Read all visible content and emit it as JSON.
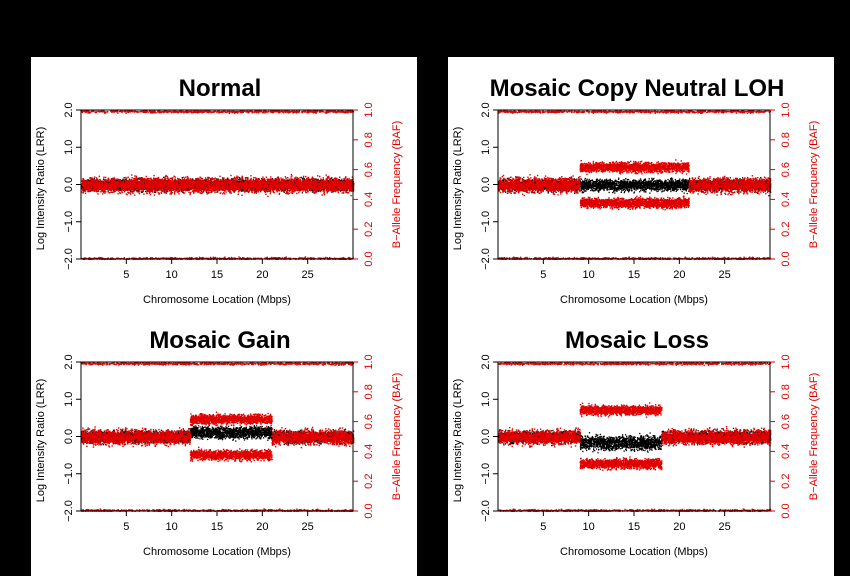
{
  "chart_data": [
    {
      "type": "scatter",
      "title": "Normal",
      "xlabel": "Chromosome Location (Mbps)",
      "ylabel": "Log Intensity Ratio (LRR)",
      "y2label": "B−Allele Frequency (BAF)",
      "xlim": [
        0,
        30
      ],
      "ylim": [
        -2.0,
        2.0
      ],
      "y2lim": [
        0.0,
        1.0
      ],
      "xticks": [
        "5",
        "10",
        "15",
        "20",
        "25"
      ],
      "yticks": [
        "−2.0",
        "−1.0",
        "0.0",
        "1.0",
        "2.0"
      ],
      "y2ticks": [
        "0.0",
        "0.2",
        "0.4",
        "0.6",
        "0.8",
        "1.0"
      ],
      "series": [
        {
          "name": "LRR",
          "color": "#000000",
          "segments": [
            {
              "x": [
                0,
                30
              ],
              "mean": 0.0,
              "spread": 0.28
            }
          ]
        },
        {
          "name": "BAF",
          "color": "#e00000",
          "segments": [
            {
              "x": [
                0,
                30
              ],
              "bands": [
                0.0,
                0.5,
                1.0
              ],
              "split": 0
            }
          ]
        }
      ]
    },
    {
      "type": "scatter",
      "title": "Mosaic Copy Neutral LOH",
      "xlabel": "Chromosome Location (Mbps)",
      "ylabel": "Log Intensity Ratio (LRR)",
      "y2label": "B−Allele Frequency (BAF)",
      "xlim": [
        0,
        30
      ],
      "ylim": [
        -2.0,
        2.0
      ],
      "y2lim": [
        0.0,
        1.0
      ],
      "xticks": [
        "5",
        "10",
        "15",
        "20",
        "25"
      ],
      "yticks": [
        "−2.0",
        "−1.0",
        "0.0",
        "1.0",
        "2.0"
      ],
      "y2ticks": [
        "0.0",
        "0.2",
        "0.4",
        "0.6",
        "0.8",
        "1.0"
      ],
      "series": [
        {
          "name": "LRR",
          "color": "#000000",
          "segments": [
            {
              "x": [
                0,
                30
              ],
              "mean": 0.0,
              "spread": 0.28
            }
          ]
        },
        {
          "name": "BAF",
          "color": "#e00000",
          "segments": [
            {
              "x": [
                0,
                9
              ],
              "bands": [
                0.0,
                0.5,
                1.0
              ],
              "split": 0
            },
            {
              "x": [
                9,
                21
              ],
              "bands": [
                0.0,
                1.0
              ],
              "split": 0.12
            },
            {
              "x": [
                21,
                30
              ],
              "bands": [
                0.0,
                0.5,
                1.0
              ],
              "split": 0
            }
          ]
        }
      ]
    },
    {
      "type": "scatter",
      "title": "Mosaic Gain",
      "xlabel": "Chromosome Location (Mbps)",
      "ylabel": "Log Intensity Ratio (LRR)",
      "y2label": "B−Allele Frequency (BAF)",
      "xlim": [
        0,
        30
      ],
      "ylim": [
        -2.0,
        2.0
      ],
      "y2lim": [
        0.0,
        1.0
      ],
      "xticks": [
        "5",
        "10",
        "15",
        "20",
        "25"
      ],
      "yticks": [
        "−2.0",
        "−1.0",
        "0.0",
        "1.0",
        "2.0"
      ],
      "y2ticks": [
        "0.0",
        "0.2",
        "0.4",
        "0.6",
        "0.8",
        "1.0"
      ],
      "series": [
        {
          "name": "LRR",
          "color": "#000000",
          "segments": [
            {
              "x": [
                0,
                12
              ],
              "mean": 0.0,
              "spread": 0.28
            },
            {
              "x": [
                12,
                21
              ],
              "mean": 0.12,
              "spread": 0.28
            },
            {
              "x": [
                21,
                30
              ],
              "mean": 0.0,
              "spread": 0.28
            }
          ]
        },
        {
          "name": "BAF",
          "color": "#e00000",
          "segments": [
            {
              "x": [
                0,
                12
              ],
              "bands": [
                0.0,
                0.5,
                1.0
              ],
              "split": 0
            },
            {
              "x": [
                12,
                21
              ],
              "bands": [
                0.0,
                1.0
              ],
              "split": 0.12
            },
            {
              "x": [
                21,
                30
              ],
              "bands": [
                0.0,
                0.5,
                1.0
              ],
              "split": 0
            }
          ]
        }
      ]
    },
    {
      "type": "scatter",
      "title": "Mosaic Loss",
      "xlabel": "Chromosome Location (Mbps)",
      "ylabel": "Log Intensity Ratio (LRR)",
      "y2label": "B−Allele Frequency (BAF)",
      "xlim": [
        0,
        30
      ],
      "ylim": [
        -2.0,
        2.0
      ],
      "y2lim": [
        0.0,
        1.0
      ],
      "xticks": [
        "5",
        "10",
        "15",
        "20",
        "25"
      ],
      "yticks": [
        "−2.0",
        "−1.0",
        "0.0",
        "1.0",
        "2.0"
      ],
      "y2ticks": [
        "0.0",
        "0.2",
        "0.4",
        "0.6",
        "0.8",
        "1.0"
      ],
      "series": [
        {
          "name": "LRR",
          "color": "#000000",
          "segments": [
            {
              "x": [
                0,
                9
              ],
              "mean": 0.0,
              "spread": 0.28
            },
            {
              "x": [
                9,
                18
              ],
              "mean": -0.15,
              "spread": 0.35
            },
            {
              "x": [
                18,
                30
              ],
              "mean": 0.0,
              "spread": 0.28
            }
          ]
        },
        {
          "name": "BAF",
          "color": "#e00000",
          "segments": [
            {
              "x": [
                0,
                9
              ],
              "bands": [
                0.0,
                0.5,
                1.0
              ],
              "split": 0
            },
            {
              "x": [
                9,
                18
              ],
              "bands": [
                0.0,
                1.0
              ],
              "split": 0.18
            },
            {
              "x": [
                18,
                30
              ],
              "bands": [
                0.0,
                0.5,
                1.0
              ],
              "split": 0
            }
          ]
        }
      ]
    }
  ]
}
